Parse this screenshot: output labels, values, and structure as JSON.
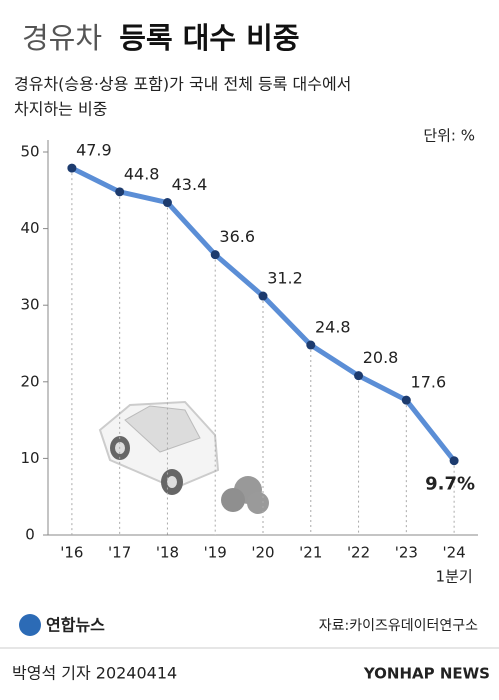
{
  "chart_data": {
    "type": "line",
    "title": {
      "light": "경유차",
      "bold": "등록 대수 비중"
    },
    "subtitle": [
      "경유차(승용·상용 포함)가 국내 전체 등록 대수에서",
      "차지하는 비중"
    ],
    "unit": "단위: %",
    "categories": [
      "'16",
      "'17",
      "'18",
      "'19",
      "'20",
      "'21",
      "'22",
      "'23",
      "'24"
    ],
    "category_note": "1분기",
    "values": [
      47.9,
      44.8,
      43.4,
      36.6,
      31.2,
      24.8,
      20.8,
      17.6,
      9.7
    ],
    "value_labels": [
      "47.9",
      "44.8",
      "43.4",
      "36.6",
      "31.2",
      "24.8",
      "20.8",
      "17.6",
      "9.7%"
    ],
    "color": "#5b8ed6",
    "marker_color": "#1d3b6e",
    "ylim": [
      0,
      50
    ],
    "yticks": [
      0,
      10,
      20,
      30,
      40,
      50
    ],
    "source": "자료:카이즈유데이터연구소",
    "logo": "연합뉴스",
    "credit": "박영석 기자  20240414",
    "watermark": "YONHAP NEWS"
  }
}
